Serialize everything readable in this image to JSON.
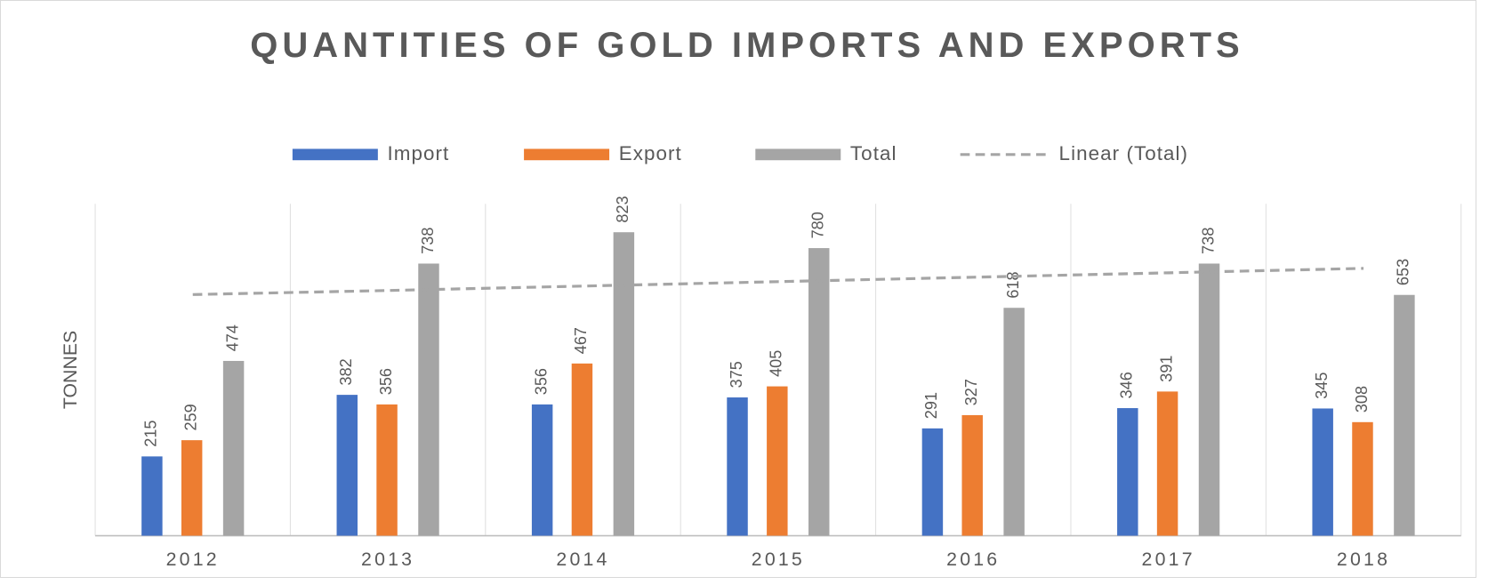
{
  "chart_data": {
    "type": "bar",
    "title": "QUANTITIES OF GOLD IMPORTS AND EXPORTS",
    "y_label": "TONNES",
    "categories": [
      "2012",
      "2013",
      "2014",
      "2015",
      "2016",
      "2017",
      "2018"
    ],
    "series": [
      {
        "name": "Import",
        "color": "#4472c4",
        "values": [
          215,
          382,
          356,
          375,
          291,
          346,
          345
        ]
      },
      {
        "name": "Export",
        "color": "#ed7d31",
        "values": [
          259,
          356,
          467,
          405,
          327,
          391,
          308
        ]
      },
      {
        "name": "Total",
        "color": "#a5a5a5",
        "values": [
          474,
          738,
          823,
          780,
          618,
          738,
          653
        ]
      },
      {
        "name": "Linear (Total)",
        "type": "line",
        "dashed": true,
        "color": "#a5a5a5",
        "values": [
          654,
          665,
          677,
          689,
          701,
          713,
          725
        ]
      }
    ],
    "ylim": [
      0,
      900
    ],
    "legend": "top"
  }
}
